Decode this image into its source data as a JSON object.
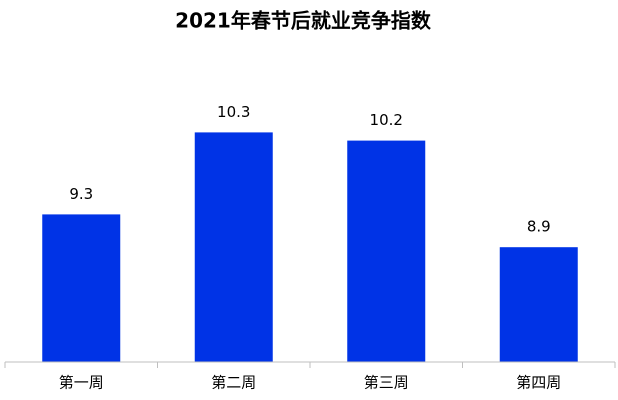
{
  "chart_data": {
    "type": "bar",
    "title": "2021年春节后就业竞争指数",
    "categories": [
      "第一周",
      "第二周",
      "第三周",
      "第四周"
    ],
    "values": [
      9.3,
      10.3,
      10.2,
      8.9
    ],
    "color": "#0033e6",
    "ylim": [
      7.5,
      11
    ]
  }
}
